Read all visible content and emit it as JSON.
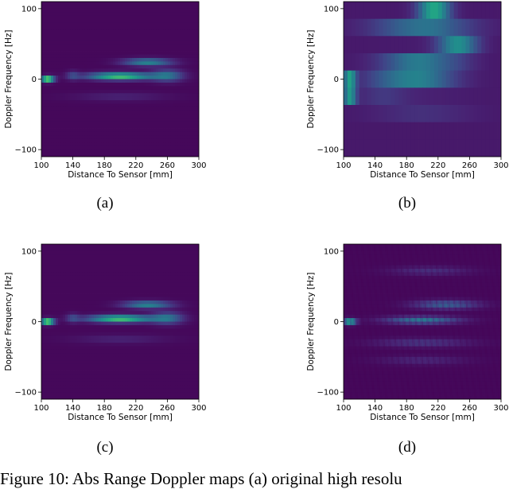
{
  "caption": "Figure 10: Abs Range Doppler maps (a) original high resolu",
  "chart_data": [
    {
      "type": "heatmap",
      "panel_label": "(a)",
      "xlabel": "Distance To Sensor [mm]",
      "ylabel": "Doppler Frequency [Hz]",
      "xlim": [
        100,
        300
      ],
      "ylim": [
        -110,
        110
      ],
      "xticks": [
        100,
        140,
        180,
        220,
        260,
        300
      ],
      "yticks": [
        -100,
        0,
        100
      ],
      "colormap": "viridis",
      "hot_spots": [
        {
          "x": 108,
          "y": 0,
          "sx": 8,
          "sy": 4,
          "v": 1.0
        },
        {
          "x": 200,
          "y": 4,
          "sx": 40,
          "sy": 5,
          "v": 0.72
        },
        {
          "x": 235,
          "y": 24,
          "sx": 30,
          "sy": 5,
          "v": 0.45
        },
        {
          "x": 260,
          "y": 5,
          "sx": 20,
          "sy": 8,
          "v": 0.35
        },
        {
          "x": 140,
          "y": 5,
          "sx": 8,
          "sy": 6,
          "v": 0.18
        },
        {
          "x": 200,
          "y": -25,
          "sx": 60,
          "sy": 6,
          "v": 0.08
        }
      ]
    },
    {
      "type": "heatmap",
      "panel_label": "(b)",
      "xlabel": "Distance To Sensor [mm]",
      "ylabel": "Doppler Frequency [Hz]",
      "xlim": [
        100,
        300
      ],
      "ylim": [
        -110,
        110
      ],
      "xticks": [
        100,
        140,
        180,
        220,
        260,
        300
      ],
      "yticks": [
        -100,
        0,
        100
      ],
      "colormap": "viridis",
      "hot_spots": [
        {
          "x": 108,
          "y": -12,
          "sx": 8,
          "sy": 14,
          "v": 1.0
        },
        {
          "x": 195,
          "y": 12,
          "sx": 45,
          "sy": 14,
          "v": 0.75
        },
        {
          "x": 245,
          "y": 45,
          "sx": 25,
          "sy": 14,
          "v": 0.45
        },
        {
          "x": 215,
          "y": 95,
          "sx": 20,
          "sy": 12,
          "v": 0.55
        },
        {
          "x": 200,
          "y": 72,
          "sx": 60,
          "sy": 12,
          "v": 0.3
        },
        {
          "x": 150,
          "y": -12,
          "sx": 30,
          "sy": 12,
          "v": 0.25
        },
        {
          "x": 200,
          "y": -40,
          "sx": 60,
          "sy": 12,
          "v": 0.12
        }
      ]
    },
    {
      "type": "heatmap",
      "panel_label": "(c)",
      "xlabel": "Distance To Sensor [mm]",
      "ylabel": "Doppler Frequency [Hz]",
      "xlim": [
        100,
        300
      ],
      "ylim": [
        -110,
        110
      ],
      "xticks": [
        100,
        140,
        180,
        220,
        260,
        300
      ],
      "yticks": [
        -100,
        0,
        100
      ],
      "colormap": "viridis",
      "hot_spots": [
        {
          "x": 108,
          "y": 0,
          "sx": 8,
          "sy": 4,
          "v": 1.0
        },
        {
          "x": 200,
          "y": 4,
          "sx": 40,
          "sy": 5,
          "v": 0.72
        },
        {
          "x": 235,
          "y": 24,
          "sx": 30,
          "sy": 5,
          "v": 0.45
        },
        {
          "x": 260,
          "y": 5,
          "sx": 20,
          "sy": 8,
          "v": 0.35
        },
        {
          "x": 140,
          "y": 5,
          "sx": 8,
          "sy": 6,
          "v": 0.18
        },
        {
          "x": 200,
          "y": -25,
          "sx": 60,
          "sy": 6,
          "v": 0.08
        }
      ]
    },
    {
      "type": "heatmap",
      "panel_label": "(d)",
      "xlabel": "Distance To Sensor [mm]",
      "ylabel": "Doppler Frequency [Hz]",
      "xlim": [
        100,
        300
      ],
      "ylim": [
        -110,
        110
      ],
      "xticks": [
        100,
        140,
        180,
        220,
        260,
        300
      ],
      "yticks": [
        -100,
        0,
        100
      ],
      "colormap": "viridis",
      "hot_spots": [
        {
          "x": 108,
          "y": 0,
          "sx": 8,
          "sy": 4,
          "v": 0.75
        },
        {
          "x": 200,
          "y": 2,
          "sx": 45,
          "sy": 5,
          "v": 0.4
        },
        {
          "x": 230,
          "y": 24,
          "sx": 40,
          "sy": 6,
          "v": 0.3
        },
        {
          "x": 210,
          "y": 72,
          "sx": 50,
          "sy": 6,
          "v": 0.12
        },
        {
          "x": 200,
          "y": -30,
          "sx": 60,
          "sy": 6,
          "v": 0.15
        },
        {
          "x": 200,
          "y": -55,
          "sx": 55,
          "sy": 6,
          "v": 0.1
        }
      ]
    }
  ]
}
